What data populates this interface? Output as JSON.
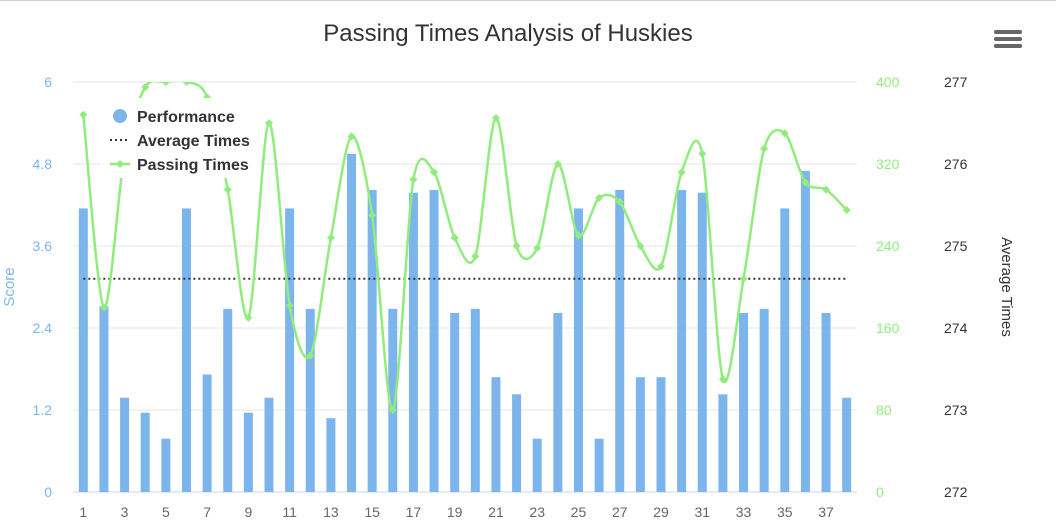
{
  "chart_data": {
    "type": "bar",
    "title": "Passing Times Analysis of Huskies",
    "x": [
      1,
      2,
      3,
      4,
      5,
      6,
      7,
      8,
      9,
      10,
      11,
      12,
      13,
      14,
      15,
      16,
      17,
      18,
      19,
      20,
      21,
      22,
      23,
      24,
      25,
      26,
      27,
      28,
      29,
      30,
      31,
      32,
      33,
      34,
      35,
      36,
      37,
      38
    ],
    "x_tick_labels": [
      "1",
      "3",
      "5",
      "7",
      "9",
      "11",
      "13",
      "15",
      "17",
      "19",
      "21",
      "23",
      "25",
      "27",
      "29",
      "31",
      "33",
      "35",
      "37"
    ],
    "y_axes": [
      {
        "title": "Score",
        "range": [
          0,
          6
        ],
        "ticks": [
          "0",
          "1.2",
          "2.4",
          "3.6",
          "4.8",
          "6"
        ],
        "color": "#7cb5ec"
      },
      {
        "title": "",
        "range": [
          0,
          400
        ],
        "ticks": [
          "0",
          "80",
          "160",
          "240",
          "320",
          "400"
        ],
        "color": "#90ed7d"
      },
      {
        "title": "Average Times",
        "range": [
          272,
          277
        ],
        "ticks": [
          "272",
          "273",
          "274",
          "275",
          "276",
          "277"
        ],
        "color": "#333333"
      }
    ],
    "series": [
      {
        "name": "Performance",
        "type": "bar",
        "axis": 0,
        "color": "#7cb5ec",
        "values": [
          4.15,
          2.72,
          1.38,
          1.16,
          0.78,
          4.15,
          1.72,
          2.68,
          1.16,
          1.38,
          4.15,
          2.68,
          1.08,
          4.95,
          4.42,
          2.68,
          4.38,
          4.42,
          2.62,
          2.68,
          1.68,
          1.43,
          0.78,
          2.62,
          4.15,
          0.78,
          4.42,
          1.68,
          1.68,
          4.42,
          4.38,
          1.43,
          2.62,
          2.68,
          4.15,
          4.7,
          2.62,
          1.38
        ]
      },
      {
        "name": "Average Times",
        "type": "line",
        "axis": 2,
        "style": "dotted",
        "color": "#333333",
        "values": [
          274.6,
          274.6,
          274.6,
          274.6,
          274.6,
          274.6,
          274.6,
          274.6,
          274.6,
          274.6,
          274.6,
          274.6,
          274.6,
          274.6,
          274.6,
          274.6,
          274.6,
          274.6,
          274.6,
          274.6,
          274.6,
          274.6,
          274.6,
          274.6,
          274.6,
          274.6,
          274.6,
          274.6,
          274.6,
          274.6,
          274.6,
          274.6,
          274.6,
          274.6,
          274.6,
          274.6,
          274.6,
          274.6
        ]
      },
      {
        "name": "Passing Times",
        "type": "spline",
        "axis": 1,
        "color": "#90ed7d",
        "values": [
          368,
          180,
          330,
          395,
          400,
          400,
          385,
          295,
          170,
          360,
          182,
          133,
          248,
          347,
          270,
          80,
          305,
          312,
          248,
          230,
          365,
          240,
          238,
          320,
          250,
          287,
          283,
          240,
          220,
          312,
          330,
          110,
          208,
          335,
          350,
          302,
          295,
          275
        ]
      }
    ],
    "legend": {
      "position": "top-left",
      "items": [
        "Performance",
        "Average Times",
        "Passing Times"
      ]
    },
    "grid": true
  },
  "menu": {
    "icon": "hamburger-menu-icon"
  }
}
